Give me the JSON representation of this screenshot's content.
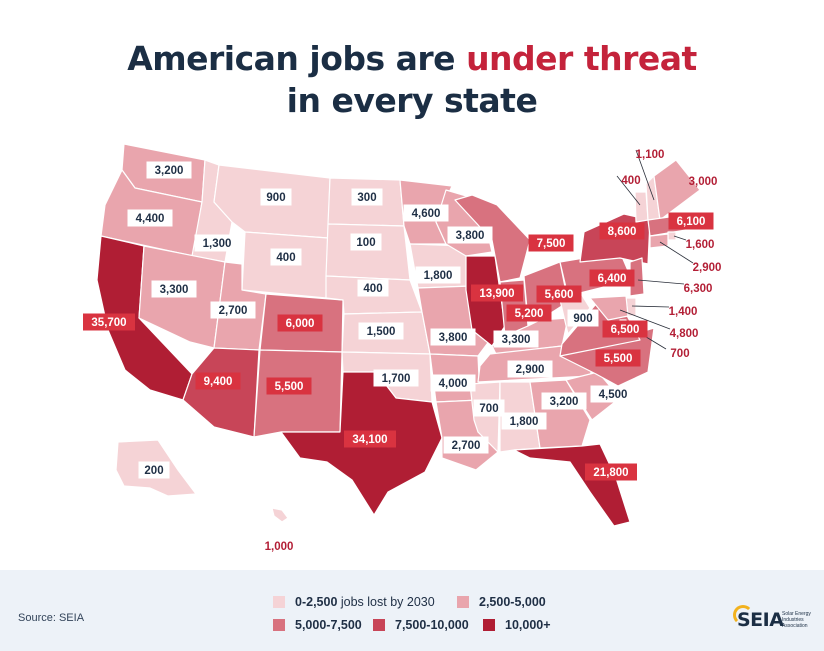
{
  "title": {
    "part1": "American jobs are ",
    "highlight": "under threat",
    "part2": "in every state"
  },
  "colors": {
    "title": "#1b2e44",
    "highlight": "#c4233b",
    "label_bg_dark": "#d93340",
    "bin1": "#f5d3d6",
    "bin2": "#e9a5ad",
    "bin3": "#d8727f",
    "bin4": "#c84558",
    "bin5": "#b01e34"
  },
  "states": [
    {
      "name": "WA",
      "label": "3,200",
      "bin": 2
    },
    {
      "name": "OR",
      "label": "4,400",
      "bin": 2
    },
    {
      "name": "CA",
      "label": "35,700",
      "bin": 5
    },
    {
      "name": "ID",
      "label": "1,300",
      "bin": 1
    },
    {
      "name": "NV",
      "label": "3,300",
      "bin": 2
    },
    {
      "name": "MT",
      "label": "900",
      "bin": 1
    },
    {
      "name": "WY",
      "label": "400",
      "bin": 1
    },
    {
      "name": "UT",
      "label": "2,700",
      "bin": 2
    },
    {
      "name": "AZ",
      "label": "9,400",
      "bin": 4
    },
    {
      "name": "CO",
      "label": "6,000",
      "bin": 3
    },
    {
      "name": "NM",
      "label": "5,500",
      "bin": 3
    },
    {
      "name": "ND",
      "label": "300",
      "bin": 1
    },
    {
      "name": "SD",
      "label": "100",
      "bin": 1
    },
    {
      "name": "NE",
      "label": "400",
      "bin": 1
    },
    {
      "name": "KS",
      "label": "1,500",
      "bin": 1
    },
    {
      "name": "OK",
      "label": "1,700",
      "bin": 1
    },
    {
      "name": "TX",
      "label": "34,100",
      "bin": 5
    },
    {
      "name": "MN",
      "label": "4,600",
      "bin": 2
    },
    {
      "name": "IA",
      "label": "1,800",
      "bin": 1
    },
    {
      "name": "MO",
      "label": "3,800",
      "bin": 2
    },
    {
      "name": "AR",
      "label": "4,000",
      "bin": 2
    },
    {
      "name": "LA",
      "label": "2,700",
      "bin": 2
    },
    {
      "name": "WI",
      "label": "3,800",
      "bin": 2
    },
    {
      "name": "IL",
      "label": "13,900",
      "bin": 5
    },
    {
      "name": "MI",
      "label": "7,500",
      "bin": 3
    },
    {
      "name": "IN",
      "label": "5,600",
      "bin": 3
    },
    {
      "name": "OH",
      "label": "5,200",
      "bin": 3
    },
    {
      "name": "KY",
      "label": "3,300",
      "bin": 2
    },
    {
      "name": "TN",
      "label": "2,900",
      "bin": 2
    },
    {
      "name": "MS",
      "label": "700",
      "bin": 1
    },
    {
      "name": "AL",
      "label": "1,800",
      "bin": 1
    },
    {
      "name": "GA",
      "label": "3,200",
      "bin": 2
    },
    {
      "name": "FL",
      "label": "21,800",
      "bin": 5
    },
    {
      "name": "SC",
      "label": "4,500",
      "bin": 2
    },
    {
      "name": "NC",
      "label": "5,500",
      "bin": 3
    },
    {
      "name": "VA",
      "label": "6,500",
      "bin": 3
    },
    {
      "name": "WV",
      "label": "900",
      "bin": 1
    },
    {
      "name": "PA",
      "label": "6,400",
      "bin": 3
    },
    {
      "name": "NY",
      "label": "8,600",
      "bin": 4
    },
    {
      "name": "VT",
      "label": "400",
      "bin": 1
    },
    {
      "name": "NH",
      "label": "1,100",
      "bin": 1
    },
    {
      "name": "ME",
      "label": "3,000",
      "bin": 2
    },
    {
      "name": "MA",
      "label": "6,100",
      "bin": 3
    },
    {
      "name": "RI",
      "label": "1,600",
      "bin": 1
    },
    {
      "name": "CT",
      "label": "2,900",
      "bin": 2
    },
    {
      "name": "NJ",
      "label": "6,300",
      "bin": 3
    },
    {
      "name": "DE",
      "label": "1,400",
      "bin": 1
    },
    {
      "name": "MD",
      "label": "4,800",
      "bin": 2
    },
    {
      "name": "DC",
      "label": "700",
      "bin": 1
    },
    {
      "name": "AK",
      "label": "200",
      "bin": 1
    },
    {
      "name": "HI",
      "label": "1,000",
      "bin": 1
    }
  ],
  "legend": {
    "bin1": "0-2,500",
    "bin1_suffix": " jobs lost by 2030",
    "bin2": "2,500-5,000",
    "bin3": "5,000-7,500",
    "bin4": "7,500-10,000",
    "bin5": "10,000+"
  },
  "source": "Source: SEIA",
  "logo": {
    "word": "SEIA",
    "sub": "Solar Energy Industries Association"
  }
}
